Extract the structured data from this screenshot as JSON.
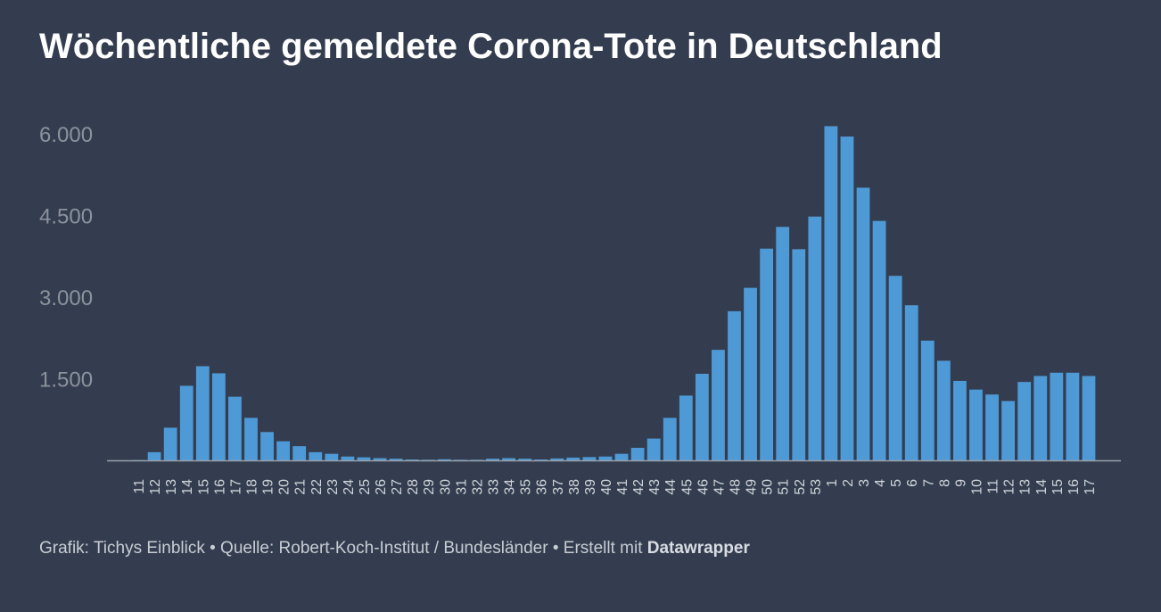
{
  "title": "Wöchentliche gemeldete Corona-Tote in Deutschland",
  "footer": {
    "credit": "Grafik: Tichys Einblick",
    "separator": " • ",
    "source": "Quelle: Robert-Koch-Institut / Bundesländer",
    "made_with_prefix": "Erstellt mit ",
    "made_with_tool": "Datawrapper"
  },
  "colors": {
    "background": "#333d4f",
    "bar": "#4e9ad6",
    "tick_label": "#8c929d",
    "axis_line": "#9aa0aa",
    "title": "#ffffff",
    "footer": "#c8ccd3"
  },
  "chart_data": {
    "type": "bar",
    "title": "Wöchentliche gemeldete Corona-Tote in Deutschland",
    "xlabel": "",
    "ylabel": "",
    "ylim": [
      0,
      6000
    ],
    "yticks": [
      1500,
      3000,
      4500,
      6000
    ],
    "ytick_labels": [
      "1.500",
      "3.000",
      "4.500",
      "6.000"
    ],
    "grid": false,
    "categories": [
      "11",
      "12",
      "13",
      "14",
      "15",
      "16",
      "17",
      "18",
      "19",
      "20",
      "21",
      "22",
      "23",
      "24",
      "25",
      "26",
      "27",
      "28",
      "29",
      "30",
      "31",
      "32",
      "33",
      "34",
      "35",
      "36",
      "37",
      "38",
      "39",
      "40",
      "41",
      "42",
      "43",
      "44",
      "45",
      "46",
      "47",
      "48",
      "49",
      "50",
      "51",
      "52",
      "53",
      "1",
      "2",
      "3",
      "4",
      "5",
      "6",
      "7",
      "8",
      "9",
      "10",
      "11",
      "12",
      "13",
      "14",
      "15",
      "16",
      "17"
    ],
    "values": [
      5,
      150,
      600,
      1370,
      1730,
      1600,
      1170,
      780,
      520,
      350,
      260,
      150,
      120,
      70,
      55,
      40,
      30,
      15,
      10,
      20,
      10,
      10,
      30,
      40,
      30,
      15,
      35,
      50,
      60,
      70,
      120,
      230,
      400,
      780,
      1190,
      1590,
      2030,
      2740,
      3170,
      3890,
      4290,
      3880,
      4480,
      6140,
      5950,
      5010,
      4400,
      3390,
      2850,
      2200,
      1830,
      1460,
      1300,
      1210,
      1090,
      1440,
      1550,
      1610,
      1610,
      1550
    ]
  }
}
